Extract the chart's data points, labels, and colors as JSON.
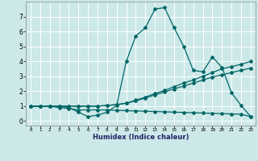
{
  "xlabel": "Humidex (Indice chaleur)",
  "bg_color": "#cce8e8",
  "grid_color": "#ffffff",
  "line_color": "#006666",
  "xlim": [
    -0.5,
    23.5
  ],
  "ylim": [
    -0.3,
    8.0
  ],
  "xticks": [
    0,
    1,
    2,
    3,
    4,
    5,
    6,
    7,
    8,
    9,
    10,
    11,
    12,
    13,
    14,
    15,
    16,
    17,
    18,
    19,
    20,
    21,
    22,
    23
  ],
  "yticks": [
    0,
    1,
    2,
    3,
    4,
    5,
    6,
    7
  ],
  "line1_x": [
    0,
    1,
    2,
    3,
    4,
    5,
    6,
    7,
    8,
    9,
    10,
    11,
    12,
    13,
    14,
    15,
    16,
    17,
    18,
    19,
    20,
    21,
    22,
    23
  ],
  "line1_y": [
    1.0,
    1.0,
    1.0,
    1.0,
    0.9,
    0.6,
    0.3,
    0.4,
    0.6,
    1.05,
    4.0,
    5.7,
    6.25,
    7.5,
    7.6,
    6.25,
    5.0,
    3.4,
    3.3,
    4.3,
    3.6,
    1.9,
    1.05,
    0.3
  ],
  "line2_x": [
    0,
    1,
    2,
    3,
    4,
    5,
    6,
    7,
    8,
    9,
    10,
    11,
    12,
    13,
    14,
    15,
    16,
    17,
    18,
    19,
    20,
    21,
    22,
    23
  ],
  "line2_y": [
    1.0,
    1.0,
    1.0,
    1.0,
    1.0,
    1.0,
    1.0,
    1.0,
    1.05,
    1.1,
    1.2,
    1.4,
    1.6,
    1.85,
    2.05,
    2.3,
    2.55,
    2.75,
    3.0,
    3.25,
    3.5,
    3.65,
    3.8,
    4.0
  ],
  "line3_x": [
    0,
    1,
    2,
    3,
    4,
    5,
    6,
    7,
    8,
    9,
    10,
    11,
    12,
    13,
    14,
    15,
    16,
    17,
    18,
    19,
    20,
    21,
    22,
    23
  ],
  "line3_y": [
    1.0,
    1.0,
    1.0,
    1.0,
    1.0,
    1.0,
    1.0,
    1.0,
    1.05,
    1.1,
    1.2,
    1.35,
    1.55,
    1.75,
    1.95,
    2.15,
    2.35,
    2.55,
    2.75,
    2.95,
    3.1,
    3.25,
    3.4,
    3.55
  ],
  "line4_x": [
    0,
    1,
    2,
    3,
    4,
    5,
    6,
    7,
    8,
    9,
    10,
    11,
    12,
    13,
    14,
    15,
    16,
    17,
    18,
    19,
    20,
    21,
    22,
    23
  ],
  "line4_y": [
    1.0,
    1.0,
    1.0,
    0.9,
    0.85,
    0.75,
    0.75,
    0.75,
    0.75,
    0.72,
    0.7,
    0.68,
    0.66,
    0.64,
    0.62,
    0.6,
    0.58,
    0.56,
    0.54,
    0.52,
    0.5,
    0.48,
    0.46,
    0.3
  ]
}
